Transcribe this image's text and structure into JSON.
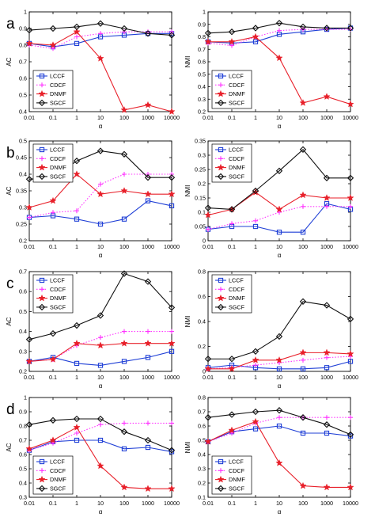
{
  "colors": {
    "LCCF": "#1f3fd6",
    "CDCF": "#ff33ff",
    "DNMF": "#e8202a",
    "SGCF": "#111111"
  },
  "xticks": [
    "0.01",
    "0.1",
    "1",
    "10",
    "100",
    "1000",
    "10000"
  ],
  "chart_data": [
    {
      "id": "a-ac",
      "row_label": "a",
      "type": "line",
      "xlabel": "α",
      "ylabel": "AC",
      "xscale": "categorical-log",
      "grid": false,
      "legend": "bottom-left",
      "ylim": [
        0.4,
        1.0
      ],
      "yticks": [
        "0.4",
        "0.5",
        "0.6",
        "0.7",
        "0.8",
        "0.9",
        "1"
      ],
      "series": [
        {
          "name": "LCCF",
          "values": [
            0.81,
            0.79,
            0.81,
            0.85,
            0.86,
            0.87,
            0.87
          ]
        },
        {
          "name": "CDCF",
          "values": [
            0.8,
            0.78,
            0.85,
            0.87,
            0.88,
            0.88,
            0.88
          ]
        },
        {
          "name": "DNMF",
          "values": [
            0.81,
            0.8,
            0.88,
            0.72,
            0.41,
            0.44,
            0.4
          ]
        },
        {
          "name": "SGCF",
          "values": [
            0.89,
            0.9,
            0.91,
            0.93,
            0.9,
            0.87,
            0.86
          ]
        }
      ]
    },
    {
      "id": "a-nmi",
      "row_label": "",
      "type": "line",
      "xlabel": "α",
      "ylabel": "NMI",
      "xscale": "categorical-log",
      "grid": false,
      "legend": "bottom-left",
      "ylim": [
        0.2,
        1.0
      ],
      "yticks": [
        "0.2",
        "0.3",
        "0.4",
        "0.5",
        "0.6",
        "0.7",
        "0.8",
        "0.9",
        "1"
      ],
      "series": [
        {
          "name": "LCCF",
          "values": [
            0.76,
            0.75,
            0.76,
            0.82,
            0.84,
            0.86,
            0.87
          ]
        },
        {
          "name": "CDCF",
          "values": [
            0.75,
            0.73,
            0.8,
            0.85,
            0.86,
            0.86,
            0.86
          ]
        },
        {
          "name": "DNMF",
          "values": [
            0.76,
            0.76,
            0.8,
            0.63,
            0.27,
            0.32,
            0.26
          ]
        },
        {
          "name": "SGCF",
          "values": [
            0.83,
            0.84,
            0.87,
            0.91,
            0.88,
            0.87,
            0.87
          ]
        }
      ]
    },
    {
      "id": "b-ac",
      "row_label": "b",
      "type": "line",
      "xlabel": "α",
      "ylabel": "AC",
      "xscale": "categorical-log",
      "grid": false,
      "legend": "top-left",
      "ylim": [
        0.2,
        0.5
      ],
      "yticks": [
        "0.2",
        "0.25",
        "0.3",
        "0.35",
        "0.4",
        "0.45",
        "0.5"
      ],
      "series": [
        {
          "name": "LCCF",
          "values": [
            0.27,
            0.275,
            0.265,
            0.25,
            0.265,
            0.32,
            0.305
          ]
        },
        {
          "name": "CDCF",
          "values": [
            0.27,
            0.285,
            0.29,
            0.37,
            0.4,
            0.4,
            0.4
          ]
        },
        {
          "name": "DNMF",
          "values": [
            0.3,
            0.32,
            0.4,
            0.34,
            0.35,
            0.34,
            0.34
          ]
        },
        {
          "name": "SGCF",
          "values": [
            0.385,
            0.39,
            0.44,
            0.47,
            0.46,
            0.39,
            0.39
          ]
        }
      ]
    },
    {
      "id": "b-nmi",
      "row_label": "",
      "type": "line",
      "xlabel": "α",
      "ylabel": "NMI",
      "xscale": "categorical-log",
      "grid": false,
      "legend": "top-left",
      "ylim": [
        0.0,
        0.35
      ],
      "yticks": [
        "0",
        "0.05",
        "0.1",
        "0.15",
        "0.2",
        "0.25",
        "0.3",
        "0.35"
      ],
      "series": [
        {
          "name": "LCCF",
          "values": [
            0.04,
            0.05,
            0.05,
            0.03,
            0.03,
            0.13,
            0.11
          ]
        },
        {
          "name": "CDCF",
          "values": [
            0.04,
            0.06,
            0.07,
            0.1,
            0.12,
            0.12,
            0.12
          ]
        },
        {
          "name": "DNMF",
          "values": [
            0.09,
            0.11,
            0.17,
            0.11,
            0.16,
            0.15,
            0.15
          ]
        },
        {
          "name": "SGCF",
          "values": [
            0.115,
            0.11,
            0.175,
            0.245,
            0.32,
            0.22,
            0.22
          ]
        }
      ]
    },
    {
      "id": "c-ac",
      "row_label": "c",
      "type": "line",
      "xlabel": "α",
      "ylabel": "AC",
      "xscale": "categorical-log",
      "grid": false,
      "legend": "top-left",
      "ylim": [
        0.2,
        0.7
      ],
      "yticks": [
        "0.2",
        "0.3",
        "0.4",
        "0.5",
        "0.6",
        "0.7"
      ],
      "series": [
        {
          "name": "LCCF",
          "values": [
            0.25,
            0.27,
            0.24,
            0.23,
            0.25,
            0.27,
            0.3
          ]
        },
        {
          "name": "CDCF",
          "values": [
            0.25,
            0.26,
            0.33,
            0.37,
            0.4,
            0.4,
            0.4
          ]
        },
        {
          "name": "DNMF",
          "values": [
            0.25,
            0.26,
            0.34,
            0.33,
            0.34,
            0.34,
            0.34
          ]
        },
        {
          "name": "SGCF",
          "values": [
            0.36,
            0.39,
            0.43,
            0.48,
            0.69,
            0.65,
            0.52
          ]
        }
      ]
    },
    {
      "id": "c-nmi",
      "row_label": "",
      "type": "line",
      "xlabel": "α",
      "ylabel": "NMI",
      "xscale": "categorical-log",
      "grid": false,
      "legend": "top-left",
      "ylim": [
        0.0,
        0.8
      ],
      "yticks": [
        "0",
        "0.2",
        "0.4",
        "0.6",
        "0.8"
      ],
      "series": [
        {
          "name": "LCCF",
          "values": [
            0.03,
            0.05,
            0.03,
            0.02,
            0.02,
            0.03,
            0.08
          ]
        },
        {
          "name": "CDCF",
          "values": [
            0.02,
            0.03,
            0.05,
            0.07,
            0.09,
            0.11,
            0.12
          ]
        },
        {
          "name": "DNMF",
          "values": [
            0.02,
            0.02,
            0.09,
            0.09,
            0.15,
            0.15,
            0.14
          ]
        },
        {
          "name": "SGCF",
          "values": [
            0.1,
            0.1,
            0.16,
            0.28,
            0.56,
            0.53,
            0.42
          ]
        }
      ]
    },
    {
      "id": "d-ac",
      "row_label": "d",
      "type": "line",
      "xlabel": "α",
      "ylabel": "AC",
      "xscale": "categorical-log",
      "grid": false,
      "legend": "bottom-left",
      "ylim": [
        0.3,
        1.0
      ],
      "yticks": [
        "0.3",
        "0.4",
        "0.5",
        "0.6",
        "0.7",
        "0.8",
        "0.9",
        "1"
      ],
      "series": [
        {
          "name": "LCCF",
          "values": [
            0.63,
            0.69,
            0.7,
            0.7,
            0.64,
            0.65,
            0.62
          ]
        },
        {
          "name": "CDCF",
          "values": [
            0.63,
            0.68,
            0.75,
            0.81,
            0.82,
            0.82,
            0.82
          ]
        },
        {
          "name": "DNMF",
          "values": [
            0.64,
            0.7,
            0.79,
            0.52,
            0.37,
            0.36,
            0.36
          ]
        },
        {
          "name": "SGCF",
          "values": [
            0.81,
            0.84,
            0.85,
            0.85,
            0.76,
            0.7,
            0.63
          ]
        }
      ]
    },
    {
      "id": "d-nmi",
      "row_label": "",
      "type": "line",
      "xlabel": "α",
      "ylabel": "NMI",
      "xscale": "categorical-log",
      "grid": false,
      "legend": "bottom-left",
      "ylim": [
        0.1,
        0.8
      ],
      "yticks": [
        "0.1",
        "0.2",
        "0.3",
        "0.4",
        "0.5",
        "0.6",
        "0.7",
        "0.8"
      ],
      "series": [
        {
          "name": "LCCF",
          "values": [
            0.49,
            0.56,
            0.58,
            0.6,
            0.55,
            0.55,
            0.53
          ]
        },
        {
          "name": "CDCF",
          "values": [
            0.49,
            0.55,
            0.62,
            0.66,
            0.66,
            0.66,
            0.66
          ]
        },
        {
          "name": "DNMF",
          "values": [
            0.49,
            0.57,
            0.63,
            0.34,
            0.18,
            0.17,
            0.17
          ]
        },
        {
          "name": "SGCF",
          "values": [
            0.66,
            0.68,
            0.7,
            0.71,
            0.66,
            0.61,
            0.54
          ]
        }
      ]
    }
  ]
}
